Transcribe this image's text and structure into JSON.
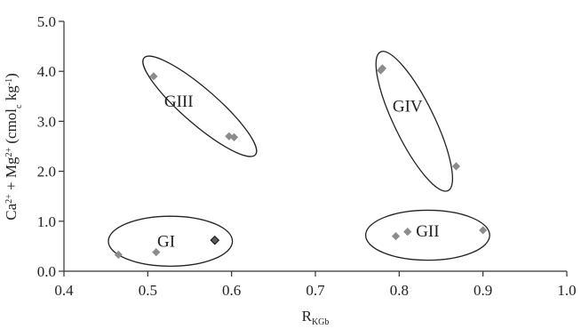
{
  "chart_data": {
    "type": "scatter",
    "xlabel_main": "R",
    "xlabel_sub": "KGb",
    "ylabel": "Ca2+ + Mg2+ (cmolc kg-1)",
    "ylabel_parts": [
      {
        "t": "Ca",
        "s": "base"
      },
      {
        "t": "2+",
        "s": "sup"
      },
      {
        "t": " + Mg",
        "s": "base"
      },
      {
        "t": "2+",
        "s": "sup"
      },
      {
        "t": " (cmol",
        "s": "base"
      },
      {
        "t": "c",
        "s": "sub"
      },
      {
        "t": " kg",
        "s": "base"
      },
      {
        "t": "-1",
        "s": "sup"
      },
      {
        "t": ")",
        "s": "base"
      }
    ],
    "xlim": [
      0.4,
      1.0
    ],
    "ylim": [
      0.0,
      5.0
    ],
    "xticks": [
      0.4,
      0.5,
      0.6,
      0.7,
      0.8,
      0.9,
      1.0
    ],
    "xtick_labels": [
      "0.4",
      "0.5",
      "0.6",
      "0.7",
      "0.8",
      "0.9",
      "1.0"
    ],
    "yticks": [
      0.0,
      1.0,
      2.0,
      3.0,
      4.0,
      5.0
    ],
    "ytick_labels": [
      "0.0",
      "1.0",
      "2.0",
      "3.0",
      "4.0",
      "5.0"
    ],
    "grid": false,
    "marker": "diamond",
    "marker_color": "#8c8c8c",
    "highlight_color": "#5a5a5a",
    "points": [
      {
        "x": 0.465,
        "y": 0.33,
        "group": "GI"
      },
      {
        "x": 0.51,
        "y": 0.38,
        "group": "GI"
      },
      {
        "x": 0.58,
        "y": 0.62,
        "group": "GI",
        "highlight": true
      },
      {
        "x": 0.507,
        "y": 3.9,
        "group": "GIII"
      },
      {
        "x": 0.597,
        "y": 2.7,
        "group": "GIII"
      },
      {
        "x": 0.603,
        "y": 2.68,
        "group": "GIII"
      },
      {
        "x": 0.796,
        "y": 0.7,
        "group": "GII"
      },
      {
        "x": 0.81,
        "y": 0.79,
        "group": "GII"
      },
      {
        "x": 0.9,
        "y": 0.82,
        "group": "GII"
      },
      {
        "x": 0.778,
        "y": 4.02,
        "group": "GIV"
      },
      {
        "x": 0.78,
        "y": 4.06,
        "group": "GIV"
      },
      {
        "x": 0.868,
        "y": 2.1,
        "group": "GIV"
      }
    ],
    "groups": [
      {
        "name": "GI",
        "cx": 0.527,
        "cy": 0.6,
        "rx": 0.074,
        "ry": 0.5,
        "angle": 0,
        "label_x": 0.522,
        "label_y": 0.6
      },
      {
        "name": "GII",
        "cx": 0.834,
        "cy": 0.72,
        "rx": 0.074,
        "ry": 0.5,
        "angle": 0,
        "label_x": 0.834,
        "label_y": 0.8
      },
      {
        "name": "GIII",
        "cx": 0.562,
        "cy": 3.3,
        "rx": 0.088,
        "ry": 0.35,
        "angle": 41,
        "label_x": 0.537,
        "label_y": 3.4
      },
      {
        "name": "GIV",
        "cx": 0.818,
        "cy": 3.0,
        "rx": 0.092,
        "ry": 0.4,
        "angle": 64,
        "label_x": 0.81,
        "label_y": 3.3
      }
    ]
  }
}
